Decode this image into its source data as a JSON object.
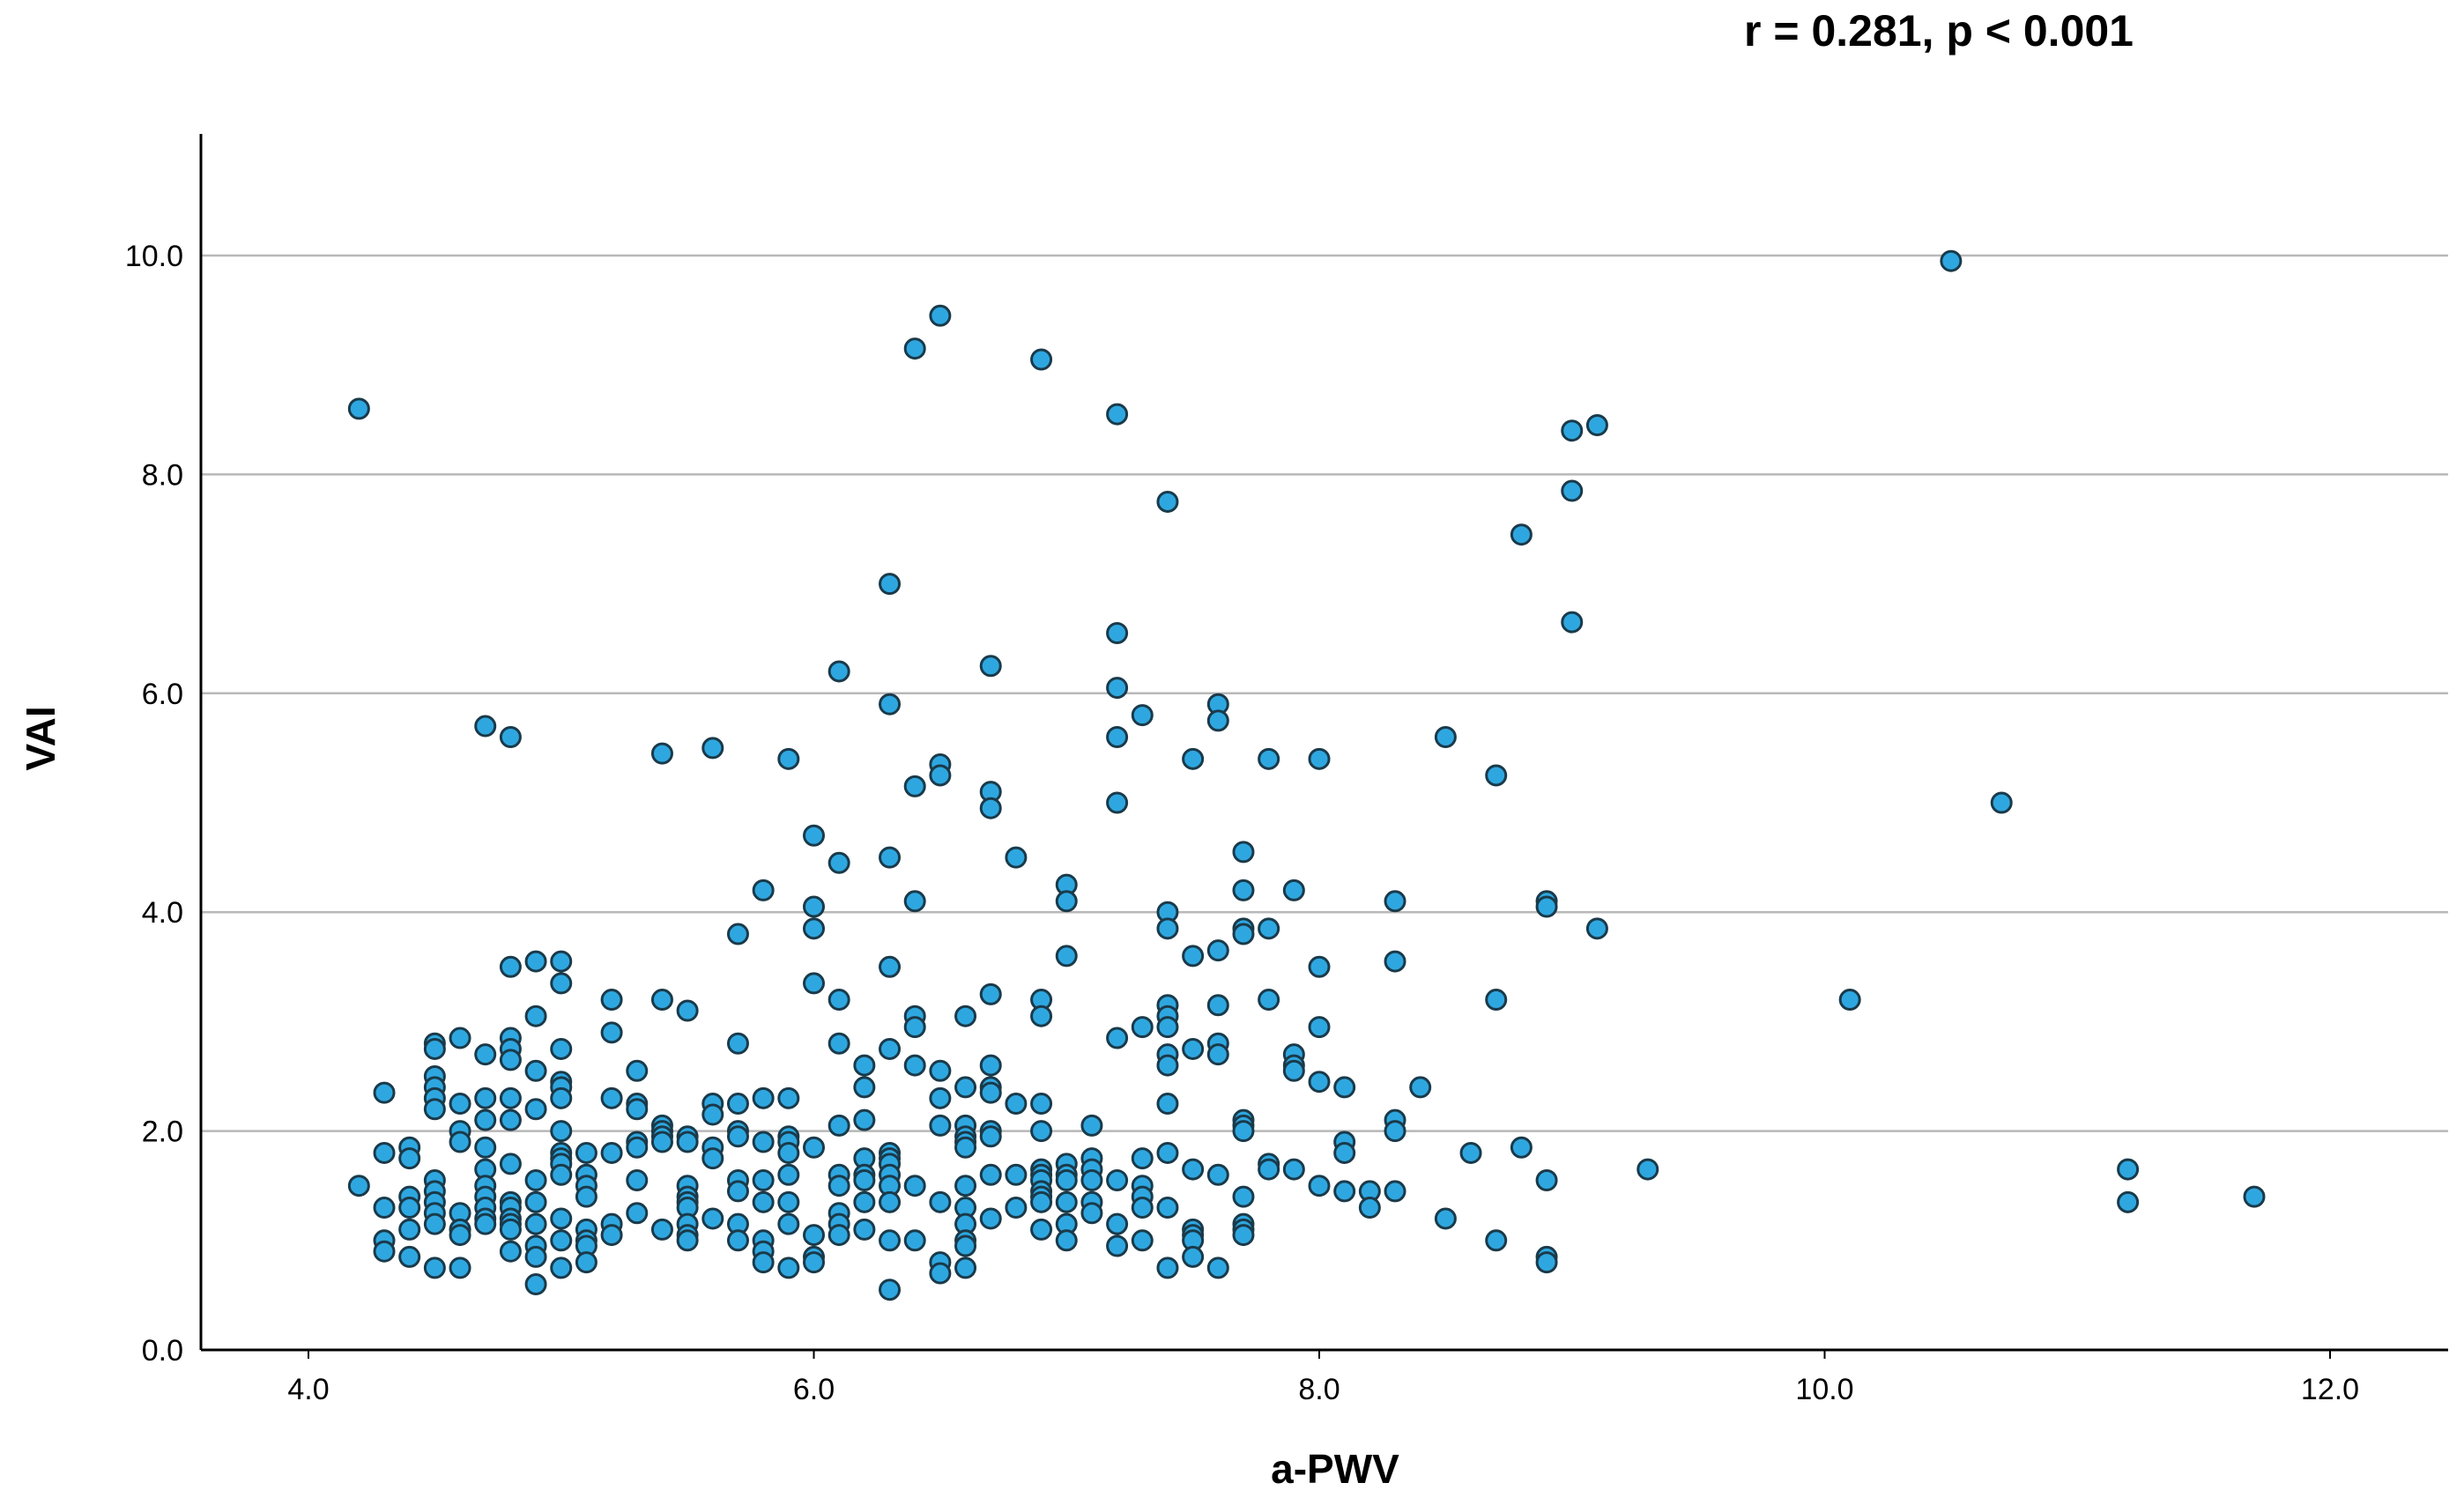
{
  "chart_data": {
    "type": "scatter",
    "annotation": "r = 0.281, p < 0.001",
    "xlabel": "a-PWV",
    "ylabel": "VAI",
    "xlim": [
      3.6,
      12.4
    ],
    "ylim": [
      0,
      11
    ],
    "x_ticks": [
      {
        "value": 4.0,
        "label": "4.0"
      },
      {
        "value": 6.0,
        "label": "6.0"
      },
      {
        "value": 8.0,
        "label": "8.0"
      },
      {
        "value": 10.0,
        "label": "10.0"
      },
      {
        "value": 12.0,
        "label": "12.0"
      }
    ],
    "y_ticks": [
      {
        "value": 0.0,
        "label": "0.0"
      },
      {
        "value": 2.0,
        "label": "2.0"
      },
      {
        "value": 4.0,
        "label": "4.0"
      },
      {
        "value": 6.0,
        "label": "6.0"
      },
      {
        "value": 8.0,
        "label": "8.0"
      },
      {
        "value": 10.0,
        "label": "10.0"
      }
    ],
    "grid": "horizontal",
    "marker_color": "#2EA7E0",
    "marker_edge_color": "#1a3a4a",
    "points": [
      [
        4.2,
        8.6
      ],
      [
        4.2,
        1.5
      ],
      [
        4.3,
        2.35
      ],
      [
        4.3,
        1.8
      ],
      [
        4.3,
        1.3
      ],
      [
        4.3,
        1.0
      ],
      [
        4.3,
        0.9
      ],
      [
        4.4,
        1.85
      ],
      [
        4.4,
        1.75
      ],
      [
        4.4,
        1.4
      ],
      [
        4.4,
        1.3
      ],
      [
        4.4,
        1.1
      ],
      [
        4.4,
        0.85
      ],
      [
        4.5,
        2.8
      ],
      [
        4.5,
        2.75
      ],
      [
        4.5,
        2.5
      ],
      [
        4.5,
        2.4
      ],
      [
        4.5,
        2.3
      ],
      [
        4.5,
        2.2
      ],
      [
        4.5,
        1.55
      ],
      [
        4.5,
        1.45
      ],
      [
        4.5,
        1.35
      ],
      [
        4.5,
        1.25
      ],
      [
        4.5,
        1.15
      ],
      [
        4.5,
        0.75
      ],
      [
        4.6,
        2.85
      ],
      [
        4.6,
        2.25
      ],
      [
        4.6,
        2.0
      ],
      [
        4.6,
        1.9
      ],
      [
        4.6,
        1.25
      ],
      [
        4.6,
        1.1
      ],
      [
        4.6,
        1.05
      ],
      [
        4.6,
        0.75
      ],
      [
        4.7,
        5.7
      ],
      [
        4.7,
        2.7
      ],
      [
        4.7,
        2.3
      ],
      [
        4.7,
        2.1
      ],
      [
        4.7,
        1.85
      ],
      [
        4.7,
        1.65
      ],
      [
        4.7,
        1.5
      ],
      [
        4.7,
        1.4
      ],
      [
        4.7,
        1.3
      ],
      [
        4.7,
        1.2
      ],
      [
        4.7,
        1.15
      ],
      [
        4.8,
        5.6
      ],
      [
        4.8,
        3.5
      ],
      [
        4.8,
        2.85
      ],
      [
        4.8,
        2.75
      ],
      [
        4.8,
        2.65
      ],
      [
        4.8,
        2.3
      ],
      [
        4.8,
        2.1
      ],
      [
        4.8,
        1.7
      ],
      [
        4.8,
        1.35
      ],
      [
        4.8,
        1.3
      ],
      [
        4.8,
        1.2
      ],
      [
        4.8,
        1.15
      ],
      [
        4.8,
        1.1
      ],
      [
        4.8,
        0.9
      ],
      [
        4.9,
        3.55
      ],
      [
        4.9,
        3.05
      ],
      [
        4.9,
        2.55
      ],
      [
        4.9,
        2.2
      ],
      [
        4.9,
        1.55
      ],
      [
        4.9,
        1.35
      ],
      [
        4.9,
        1.15
      ],
      [
        4.9,
        0.95
      ],
      [
        4.9,
        0.85
      ],
      [
        4.9,
        0.6
      ],
      [
        5.0,
        3.55
      ],
      [
        5.0,
        3.35
      ],
      [
        5.0,
        2.75
      ],
      [
        5.0,
        2.45
      ],
      [
        5.0,
        2.4
      ],
      [
        5.0,
        2.3
      ],
      [
        5.0,
        2.0
      ],
      [
        5.0,
        1.8
      ],
      [
        5.0,
        1.75
      ],
      [
        5.0,
        1.7
      ],
      [
        5.0,
        1.6
      ],
      [
        5.0,
        1.2
      ],
      [
        5.0,
        1.0
      ],
      [
        5.0,
        0.75
      ],
      [
        5.1,
        1.8
      ],
      [
        5.1,
        1.6
      ],
      [
        5.1,
        1.5
      ],
      [
        5.1,
        1.4
      ],
      [
        5.1,
        1.1
      ],
      [
        5.1,
        1.0
      ],
      [
        5.1,
        0.95
      ],
      [
        5.1,
        0.8
      ],
      [
        5.2,
        3.2
      ],
      [
        5.2,
        2.9
      ],
      [
        5.2,
        2.3
      ],
      [
        5.2,
        1.8
      ],
      [
        5.2,
        1.15
      ],
      [
        5.2,
        1.05
      ],
      [
        5.3,
        2.55
      ],
      [
        5.3,
        2.25
      ],
      [
        5.3,
        2.2
      ],
      [
        5.3,
        1.9
      ],
      [
        5.3,
        1.85
      ],
      [
        5.3,
        1.55
      ],
      [
        5.3,
        1.25
      ],
      [
        5.4,
        5.45
      ],
      [
        5.4,
        3.2
      ],
      [
        5.4,
        2.05
      ],
      [
        5.4,
        2.0
      ],
      [
        5.4,
        1.95
      ],
      [
        5.4,
        1.9
      ],
      [
        5.4,
        1.1
      ],
      [
        5.5,
        3.1
      ],
      [
        5.5,
        1.95
      ],
      [
        5.5,
        1.9
      ],
      [
        5.5,
        1.5
      ],
      [
        5.5,
        1.4
      ],
      [
        5.5,
        1.35
      ],
      [
        5.5,
        1.3
      ],
      [
        5.5,
        1.15
      ],
      [
        5.5,
        1.05
      ],
      [
        5.5,
        1.0
      ],
      [
        5.6,
        5.5
      ],
      [
        5.6,
        2.25
      ],
      [
        5.6,
        2.15
      ],
      [
        5.6,
        1.85
      ],
      [
        5.6,
        1.75
      ],
      [
        5.6,
        1.2
      ],
      [
        5.7,
        3.8
      ],
      [
        5.7,
        2.8
      ],
      [
        5.7,
        2.25
      ],
      [
        5.7,
        2.0
      ],
      [
        5.7,
        1.95
      ],
      [
        5.7,
        1.55
      ],
      [
        5.7,
        1.45
      ],
      [
        5.7,
        1.15
      ],
      [
        5.7,
        1.0
      ],
      [
        5.8,
        4.2
      ],
      [
        5.8,
        2.3
      ],
      [
        5.8,
        1.9
      ],
      [
        5.8,
        1.55
      ],
      [
        5.8,
        1.35
      ],
      [
        5.8,
        1.0
      ],
      [
        5.8,
        0.9
      ],
      [
        5.8,
        0.8
      ],
      [
        5.9,
        5.4
      ],
      [
        5.9,
        2.3
      ],
      [
        5.9,
        1.95
      ],
      [
        5.9,
        1.9
      ],
      [
        5.9,
        1.8
      ],
      [
        5.9,
        1.6
      ],
      [
        5.9,
        1.35
      ],
      [
        5.9,
        1.15
      ],
      [
        5.9,
        0.75
      ],
      [
        6.0,
        4.7
      ],
      [
        6.0,
        4.05
      ],
      [
        6.0,
        3.85
      ],
      [
        6.0,
        3.35
      ],
      [
        6.0,
        1.85
      ],
      [
        6.0,
        1.05
      ],
      [
        6.0,
        0.85
      ],
      [
        6.0,
        0.8
      ],
      [
        6.1,
        6.2
      ],
      [
        6.1,
        4.45
      ],
      [
        6.1,
        3.2
      ],
      [
        6.1,
        2.8
      ],
      [
        6.1,
        2.05
      ],
      [
        6.1,
        1.6
      ],
      [
        6.1,
        1.5
      ],
      [
        6.1,
        1.25
      ],
      [
        6.1,
        1.15
      ],
      [
        6.1,
        1.05
      ],
      [
        6.2,
        2.6
      ],
      [
        6.2,
        2.4
      ],
      [
        6.2,
        2.1
      ],
      [
        6.2,
        1.75
      ],
      [
        6.2,
        1.6
      ],
      [
        6.2,
        1.55
      ],
      [
        6.2,
        1.35
      ],
      [
        6.2,
        1.1
      ],
      [
        6.3,
        7.0
      ],
      [
        6.3,
        5.9
      ],
      [
        6.3,
        4.5
      ],
      [
        6.3,
        3.5
      ],
      [
        6.3,
        2.75
      ],
      [
        6.3,
        1.8
      ],
      [
        6.3,
        1.75
      ],
      [
        6.3,
        1.7
      ],
      [
        6.3,
        1.6
      ],
      [
        6.3,
        1.5
      ],
      [
        6.3,
        1.35
      ],
      [
        6.3,
        1.0
      ],
      [
        6.3,
        0.55
      ],
      [
        6.4,
        9.15
      ],
      [
        6.4,
        5.15
      ],
      [
        6.4,
        4.1
      ],
      [
        6.4,
        3.05
      ],
      [
        6.4,
        2.95
      ],
      [
        6.4,
        2.6
      ],
      [
        6.4,
        1.5
      ],
      [
        6.4,
        1.0
      ],
      [
        6.5,
        9.45
      ],
      [
        6.5,
        5.35
      ],
      [
        6.5,
        5.25
      ],
      [
        6.5,
        2.55
      ],
      [
        6.5,
        2.3
      ],
      [
        6.5,
        2.05
      ],
      [
        6.5,
        1.35
      ],
      [
        6.5,
        0.8
      ],
      [
        6.5,
        0.7
      ],
      [
        6.6,
        3.05
      ],
      [
        6.6,
        2.4
      ],
      [
        6.6,
        2.05
      ],
      [
        6.6,
        1.95
      ],
      [
        6.6,
        1.9
      ],
      [
        6.6,
        1.85
      ],
      [
        6.6,
        1.5
      ],
      [
        6.6,
        1.3
      ],
      [
        6.6,
        1.15
      ],
      [
        6.6,
        1.0
      ],
      [
        6.6,
        0.95
      ],
      [
        6.6,
        0.75
      ],
      [
        6.7,
        6.25
      ],
      [
        6.7,
        5.1
      ],
      [
        6.7,
        4.95
      ],
      [
        6.7,
        3.25
      ],
      [
        6.7,
        2.6
      ],
      [
        6.7,
        2.4
      ],
      [
        6.7,
        2.35
      ],
      [
        6.7,
        2.0
      ],
      [
        6.7,
        1.95
      ],
      [
        6.7,
        1.6
      ],
      [
        6.7,
        1.2
      ],
      [
        6.8,
        4.5
      ],
      [
        6.8,
        2.25
      ],
      [
        6.8,
        1.6
      ],
      [
        6.8,
        1.3
      ],
      [
        6.9,
        9.05
      ],
      [
        6.9,
        3.2
      ],
      [
        6.9,
        3.05
      ],
      [
        6.9,
        2.25
      ],
      [
        6.9,
        2.0
      ],
      [
        6.9,
        1.65
      ],
      [
        6.9,
        1.6
      ],
      [
        6.9,
        1.55
      ],
      [
        6.9,
        1.45
      ],
      [
        6.9,
        1.4
      ],
      [
        6.9,
        1.35
      ],
      [
        6.9,
        1.1
      ],
      [
        7.0,
        4.25
      ],
      [
        7.0,
        4.1
      ],
      [
        7.0,
        3.6
      ],
      [
        7.0,
        1.7
      ],
      [
        7.0,
        1.6
      ],
      [
        7.0,
        1.55
      ],
      [
        7.0,
        1.35
      ],
      [
        7.0,
        1.15
      ],
      [
        7.0,
        1.0
      ],
      [
        7.1,
        2.05
      ],
      [
        7.1,
        1.75
      ],
      [
        7.1,
        1.65
      ],
      [
        7.1,
        1.55
      ],
      [
        7.1,
        1.35
      ],
      [
        7.1,
        1.25
      ],
      [
        7.2,
        8.55
      ],
      [
        7.2,
        6.55
      ],
      [
        7.2,
        6.05
      ],
      [
        7.2,
        5.6
      ],
      [
        7.2,
        5.0
      ],
      [
        7.2,
        2.85
      ],
      [
        7.2,
        1.55
      ],
      [
        7.2,
        1.15
      ],
      [
        7.2,
        0.95
      ],
      [
        7.3,
        5.8
      ],
      [
        7.3,
        2.95
      ],
      [
        7.3,
        1.75
      ],
      [
        7.3,
        1.5
      ],
      [
        7.3,
        1.4
      ],
      [
        7.3,
        1.3
      ],
      [
        7.3,
        1.0
      ],
      [
        7.4,
        7.75
      ],
      [
        7.4,
        4.0
      ],
      [
        7.4,
        3.85
      ],
      [
        7.4,
        3.15
      ],
      [
        7.4,
        3.05
      ],
      [
        7.4,
        2.95
      ],
      [
        7.4,
        2.7
      ],
      [
        7.4,
        2.6
      ],
      [
        7.4,
        2.25
      ],
      [
        7.4,
        1.8
      ],
      [
        7.4,
        1.3
      ],
      [
        7.4,
        0.75
      ],
      [
        7.5,
        5.4
      ],
      [
        7.5,
        3.6
      ],
      [
        7.5,
        2.75
      ],
      [
        7.5,
        1.65
      ],
      [
        7.5,
        1.1
      ],
      [
        7.5,
        1.05
      ],
      [
        7.5,
        1.0
      ],
      [
        7.5,
        0.85
      ],
      [
        7.6,
        5.9
      ],
      [
        7.6,
        5.75
      ],
      [
        7.6,
        3.65
      ],
      [
        7.6,
        3.15
      ],
      [
        7.6,
        2.8
      ],
      [
        7.6,
        2.7
      ],
      [
        7.6,
        1.6
      ],
      [
        7.6,
        0.75
      ],
      [
        7.7,
        4.55
      ],
      [
        7.7,
        4.2
      ],
      [
        7.7,
        3.85
      ],
      [
        7.7,
        3.8
      ],
      [
        7.7,
        2.1
      ],
      [
        7.7,
        2.05
      ],
      [
        7.7,
        2.0
      ],
      [
        7.7,
        1.4
      ],
      [
        7.7,
        1.15
      ],
      [
        7.7,
        1.1
      ],
      [
        7.7,
        1.05
      ],
      [
        7.8,
        5.4
      ],
      [
        7.8,
        3.85
      ],
      [
        7.8,
        3.2
      ],
      [
        7.8,
        1.7
      ],
      [
        7.8,
        1.65
      ],
      [
        7.9,
        4.2
      ],
      [
        7.9,
        2.7
      ],
      [
        7.9,
        2.6
      ],
      [
        7.9,
        2.55
      ],
      [
        7.9,
        1.65
      ],
      [
        8.0,
        5.4
      ],
      [
        8.0,
        3.5
      ],
      [
        8.0,
        2.95
      ],
      [
        8.0,
        2.45
      ],
      [
        8.0,
        1.5
      ],
      [
        8.1,
        2.4
      ],
      [
        8.1,
        1.9
      ],
      [
        8.1,
        1.8
      ],
      [
        8.1,
        1.45
      ],
      [
        8.2,
        1.45
      ],
      [
        8.2,
        1.3
      ],
      [
        8.3,
        4.1
      ],
      [
        8.3,
        3.55
      ],
      [
        8.3,
        2.1
      ],
      [
        8.3,
        2.0
      ],
      [
        8.3,
        1.45
      ],
      [
        8.4,
        2.4
      ],
      [
        8.5,
        5.6
      ],
      [
        8.5,
        1.2
      ],
      [
        8.6,
        1.8
      ],
      [
        8.7,
        5.25
      ],
      [
        8.7,
        3.2
      ],
      [
        8.7,
        1.0
      ],
      [
        8.8,
        7.45
      ],
      [
        8.8,
        1.85
      ],
      [
        8.9,
        4.1
      ],
      [
        8.9,
        4.05
      ],
      [
        8.9,
        1.55
      ],
      [
        8.9,
        0.85
      ],
      [
        8.9,
        0.8
      ],
      [
        9.0,
        8.4
      ],
      [
        9.0,
        7.85
      ],
      [
        9.0,
        6.65
      ],
      [
        9.1,
        8.45
      ],
      [
        9.1,
        3.85
      ],
      [
        9.3,
        1.65
      ],
      [
        10.1,
        3.2
      ],
      [
        10.5,
        9.95
      ],
      [
        10.7,
        5.0
      ],
      [
        11.2,
        1.65
      ],
      [
        11.2,
        1.35
      ],
      [
        11.7,
        1.4
      ]
    ]
  }
}
